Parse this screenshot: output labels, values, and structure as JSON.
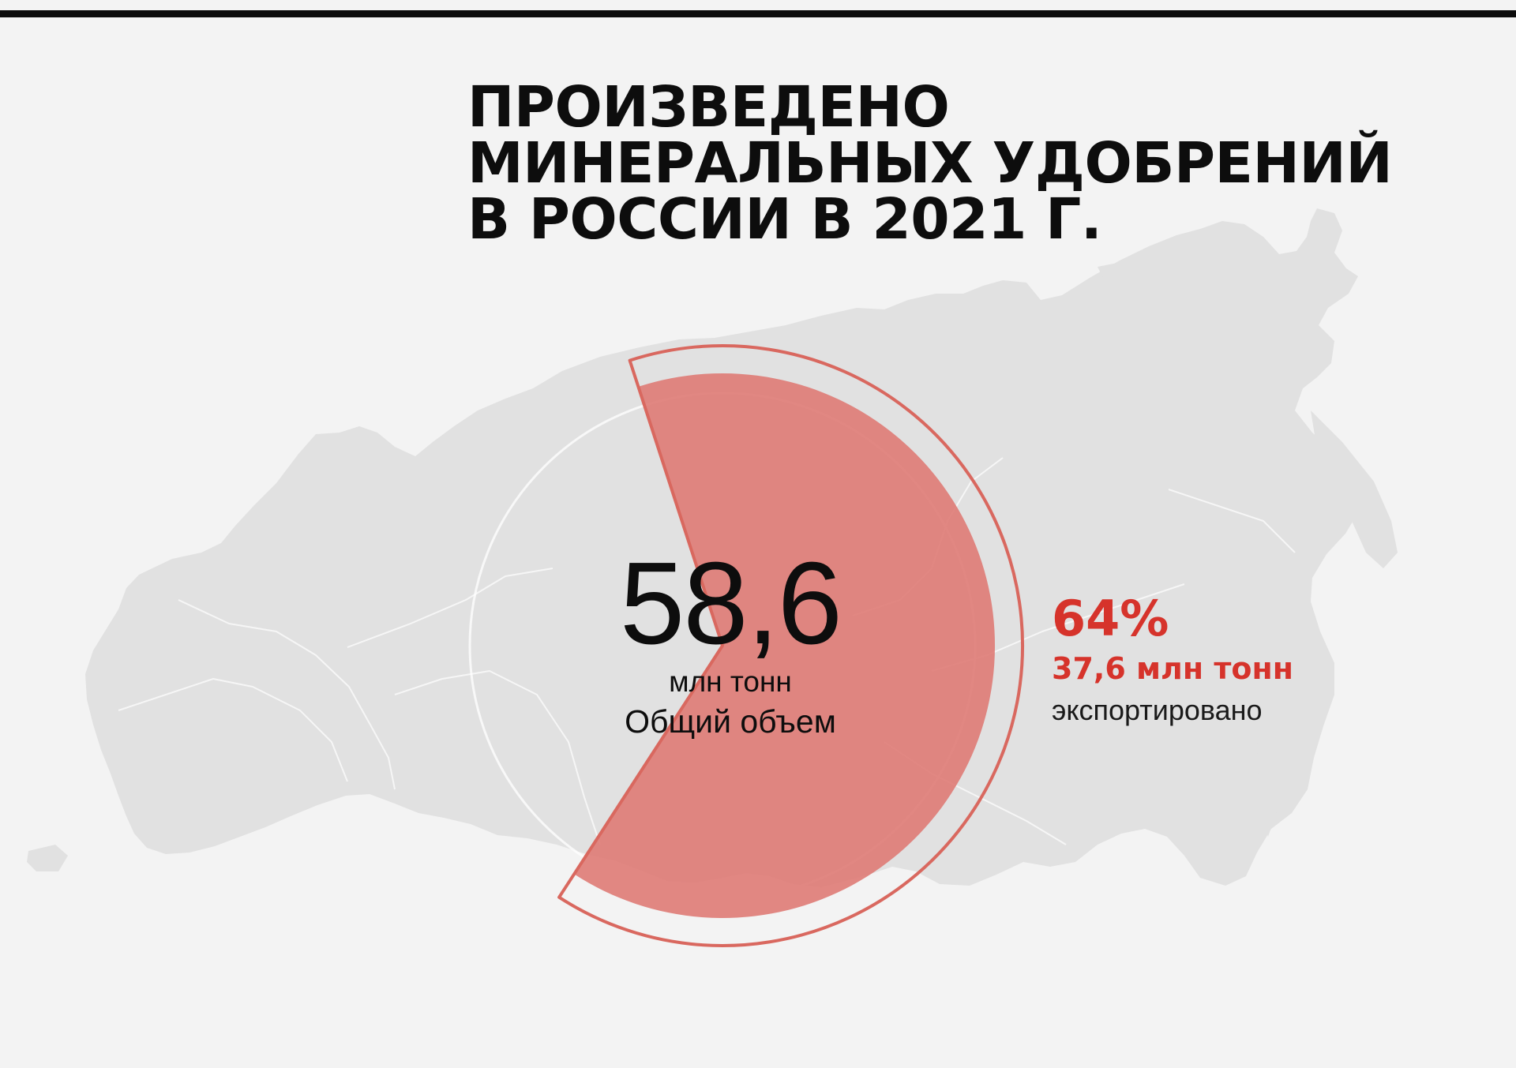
{
  "title": {
    "line1": "ПРОИЗВЕДЕНО",
    "line2": "МИНЕРАЛЬНЫХ УДОБРЕНИЙ",
    "line3": "В РОССИИ В 2021 Г."
  },
  "colors": {
    "background": "#f3f3f3",
    "map_fill": "#e1e1e1",
    "accent": "#d6332b",
    "export_fill": "#df7e78",
    "outline": "#d9685f",
    "text": "#0d0d0d"
  },
  "chart_data": {
    "type": "pie",
    "title": "ПРОИЗВЕДЕНО МИНЕРАЛЬНЫХ УДОБРЕНИЙ В РОССИИ В 2021 Г.",
    "unit": "млн тонн",
    "total": {
      "value": 58.6,
      "display": "58,6",
      "unit": "млн тонн",
      "label": "Общий объем"
    },
    "slices": [
      {
        "value": 37.6,
        "percent": 64,
        "display_percent": "64%",
        "display_value": "37,6 млн тонн",
        "label": "экспортировано",
        "color": "#df7e78"
      },
      {
        "value": 21.0,
        "percent": 36,
        "label": "",
        "color": "#f3f3f3"
      }
    ]
  }
}
